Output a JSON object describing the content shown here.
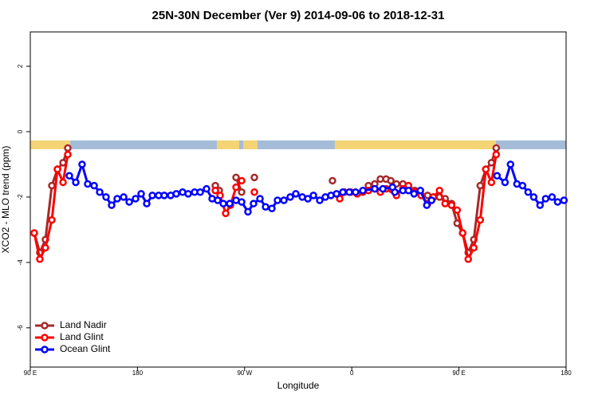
{
  "chart_data": {
    "type": "line",
    "title": "25N-30N December (Ver 9)   2014-09-06 to 2018-12-31",
    "x_label": "Longitude",
    "y_label": "XCO2 - MLO trend (ppm)",
    "xlim": [
      90,
      540
    ],
    "ylim": [
      -7.2,
      3.05
    ],
    "xticks": [
      {
        "value": 90,
        "label": "90 E"
      },
      180,
      {
        "value": 270,
        "label": "90 W"
      },
      {
        "value": 360,
        "label": "0"
      },
      {
        "value": 450,
        "label": "90 E"
      },
      {
        "value": 540,
        "label": "180"
      }
    ],
    "yticks": [
      -6,
      -4,
      -2,
      0,
      2
    ],
    "legend": "bottom-left",
    "series": [
      {
        "name": "Land Nadir",
        "color": "#a52a2a",
        "x": [
          93.3,
          98.0,
          102.7,
          108.1,
          112.8,
          117.5,
          121.5,
          180,
          245.4,
          248.7,
          255,
          262.8,
          267.5,
          272,
          278.2,
          310,
          343.8,
          350,
          374.0,
          379.3,
          384.0,
          388.8,
          392.8,
          397.5,
          402.9,
          407.6,
          413.0,
          418.3,
          423.7,
          429.0,
          433.7,
          438.4,
          443.8,
          448.5,
          453.1,
          457.8,
          462.5,
          467.9,
          472.6,
          477.3,
          481.3
        ],
        "values": [
          -3.1,
          -3.7,
          -3.3,
          -1.65,
          -1.15,
          -0.95,
          -0.5,
          null,
          -1.65,
          -1.8,
          null,
          -1.4,
          -1.85,
          null,
          -1.4,
          null,
          -1.5,
          null,
          -1.65,
          -1.6,
          -1.45,
          -1.45,
          -1.5,
          -1.6,
          -1.6,
          -1.65,
          -1.8,
          -1.95,
          -1.95,
          -2.0,
          -2.0,
          -2.05,
          -2.2,
          -2.8,
          -3.1,
          -3.7,
          -3.3,
          -1.65,
          -1.15,
          -0.95,
          -0.5
        ]
      },
      {
        "name": "Land Glint",
        "color": "#ff0000",
        "x": [
          93.3,
          98.0,
          102.7,
          108.1,
          112.8,
          117.5,
          121.5,
          180,
          245.4,
          249.4,
          254.1,
          258.1,
          262.8,
          267.5,
          272,
          278.2,
          310,
          349.9,
          353.8,
          359.2,
          364.6,
          369.3,
          374.0,
          379.3,
          384.0,
          388.8,
          397.5,
          402.9,
          407.6,
          413.0,
          418.3,
          423.7,
          428.4,
          433.7,
          438.4,
          443.8,
          448.5,
          453.1,
          457.8,
          462.5,
          467.9,
          472.6,
          477.3,
          481.3
        ],
        "values": [
          -3.1,
          -3.9,
          -3.55,
          -2.7,
          -1.15,
          -1.55,
          -0.7,
          null,
          -1.8,
          -1.95,
          -2.5,
          -2.25,
          -1.7,
          -1.5,
          null,
          -1.85,
          null,
          -2.05,
          -1.85,
          -1.85,
          -1.9,
          -1.85,
          -1.8,
          -1.75,
          -1.85,
          -1.75,
          -1.95,
          -1.75,
          -1.65,
          -1.85,
          -1.95,
          -2.2,
          -2.0,
          -1.8,
          -2.2,
          -2.25,
          -2.4,
          -3.1,
          -3.9,
          -3.55,
          -2.7,
          -1.15,
          -1.55,
          -0.7
        ]
      },
      {
        "name": "Ocean Glint",
        "color": "#0000ff",
        "x": [
          122.8,
          128.2,
          133.5,
          138.2,
          143.6,
          148.3,
          153.6,
          158.3,
          163.0,
          168.4,
          173.1,
          178.4,
          183.1,
          187.8,
          192.5,
          197.8,
          202.5,
          207.9,
          212.6,
          217.9,
          222.6,
          228.0,
          232.7,
          238.0,
          242.7,
          247.4,
          252.1,
          257.5,
          262.8,
          267.5,
          272.8,
          277.5,
          282.9,
          287.6,
          292.9,
          297.6,
          303.0,
          308.3,
          313.0,
          318.4,
          323.1,
          327.8,
          333.1,
          337.8,
          342.5,
          347.2,
          352.5,
          357.9,
          363.2,
          369.3,
          379.3,
          386.1,
          394.2,
          396.2,
          402.9,
          407.6,
          412.3,
          417.6,
          423.0,
          427.0,
          455,
          482.0,
          488.7,
          493.3,
          498.7,
          503.4,
          508.1,
          512.8,
          518.1,
          522.8,
          528.2,
          532.9,
          538.2
        ],
        "values": [
          -1.35,
          -1.55,
          -1.0,
          -1.6,
          -1.65,
          -1.85,
          -2.0,
          -2.25,
          -2.05,
          -2.0,
          -2.15,
          -2.05,
          -1.9,
          -2.2,
          -1.95,
          -1.95,
          -1.95,
          -1.95,
          -1.9,
          -1.85,
          -1.9,
          -1.85,
          -1.85,
          -1.75,
          -2.05,
          -2.1,
          -2.2,
          -2.2,
          -2.1,
          -2.15,
          -2.45,
          -2.2,
          -2.05,
          -2.3,
          -2.35,
          -2.1,
          -2.1,
          -2.0,
          -1.9,
          -2.0,
          -2.05,
          -1.95,
          -2.1,
          -2.0,
          -1.95,
          -1.9,
          -1.85,
          -1.85,
          -1.85,
          -1.8,
          -1.75,
          -1.75,
          -1.7,
          -1.85,
          -1.8,
          -1.8,
          -1.9,
          -1.8,
          -2.25,
          -2.1,
          null,
          -1.35,
          -1.55,
          -1.0,
          -1.6,
          -1.65,
          -1.85,
          -2.0,
          -2.25,
          -2.05,
          -2.0,
          -2.15,
          -2.1
        ]
      }
    ]
  }
}
